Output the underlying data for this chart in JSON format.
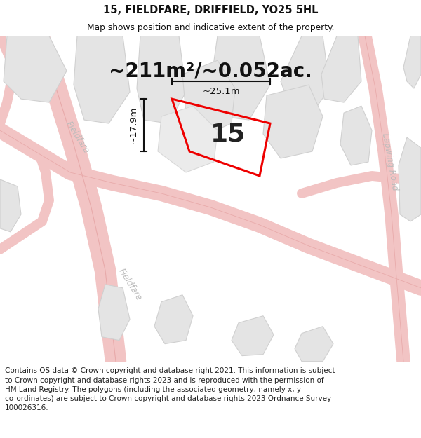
{
  "title": "15, FIELDFARE, DRIFFIELD, YO25 5HL",
  "subtitle": "Map shows position and indicative extent of the property.",
  "area_text": "~211m²/~0.052ac.",
  "property_number": "15",
  "dim_width": "~25.1m",
  "dim_height": "~17.9m",
  "footer": "Contains OS data © Crown copyright and database right 2021. This information is subject\nto Crown copyright and database rights 2023 and is reproduced with the permission of\nHM Land Registry. The polygons (including the associated geometry, namely x, y\nco-ordinates) are subject to Crown copyright and database rights 2023 Ordnance Survey\n100026316.",
  "bg_color": "#f7f7f7",
  "road_color": "#f2c4c4",
  "road_edge": "#e8aaaa",
  "block_fill": "#e4e4e4",
  "block_edge": "#d0d0d0",
  "plot_color": "#ee0000",
  "plot_linewidth": 2.2,
  "title_fontsize": 10.5,
  "subtitle_fontsize": 8.8,
  "area_fontsize": 20,
  "number_fontsize": 26,
  "dim_fontsize": 9.5,
  "footer_fontsize": 7.5,
  "map_label_color": "#bbbbbb",
  "map_label_fontsize": 8.5
}
